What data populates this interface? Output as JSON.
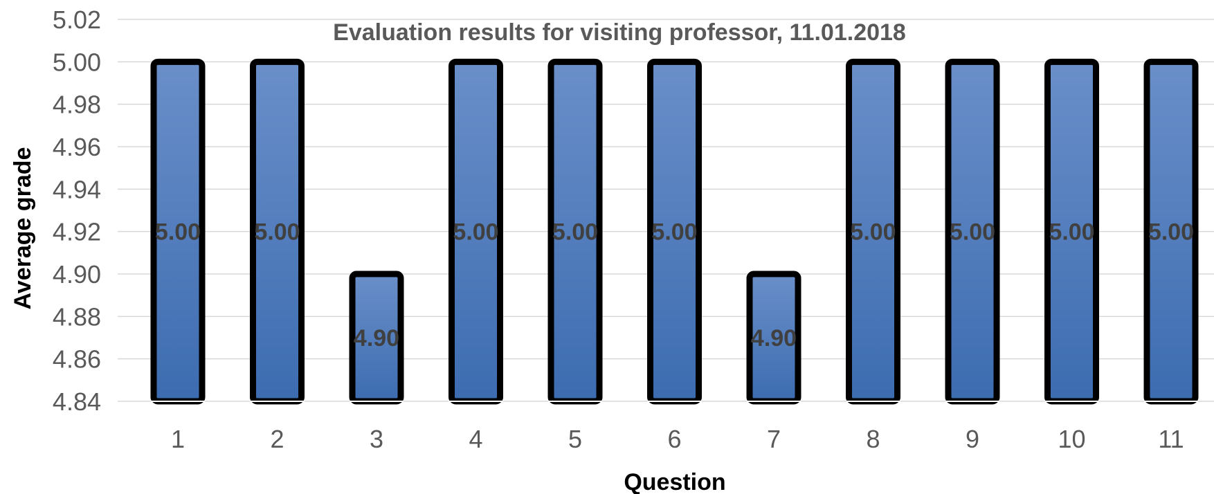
{
  "chart_data": {
    "type": "bar",
    "title": "Evaluation results for visiting professor, 11.01.2018",
    "xlabel": "Question",
    "ylabel": "Average grade",
    "categories": [
      "1",
      "2",
      "3",
      "4",
      "5",
      "6",
      "7",
      "8",
      "9",
      "10",
      "11"
    ],
    "values": [
      5.0,
      5.0,
      4.9,
      5.0,
      5.0,
      5.0,
      4.9,
      5.0,
      5.0,
      5.0,
      5.0
    ],
    "data_labels": [
      "5.00",
      "5.00",
      "4.90",
      "5.00",
      "5.00",
      "5.00",
      "4.90",
      "5.00",
      "5.00",
      "5.00",
      "5.00"
    ],
    "ylim": [
      4.84,
      5.02
    ],
    "yticks": [
      "4.84",
      "4.86",
      "4.88",
      "4.90",
      "4.92",
      "4.94",
      "4.96",
      "4.98",
      "5.00",
      "5.02"
    ],
    "grid": true,
    "legend": "none",
    "colors": {
      "bar_top": "#6a8fc9",
      "bar_bottom": "#3c6cb0",
      "bar_outline": "#000000",
      "grid": "#d9d9d9",
      "text": "#595959"
    }
  }
}
